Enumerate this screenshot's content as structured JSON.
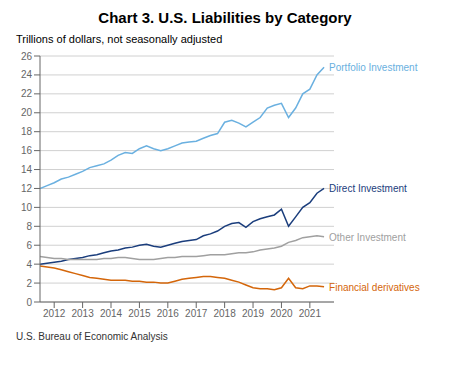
{
  "chart_data": {
    "type": "line",
    "title": "Chart 3. U.S. Liabilities by Category",
    "subtitle": "Trillions of dollars, not seasonally adjusted",
    "annotations": [
      "U.S. Bureau of Economic Analysis"
    ],
    "xlim": [
      2011.5,
      2021.85
    ],
    "xticks": [
      2012,
      2013,
      2014,
      2015,
      2016,
      2017,
      2018,
      2019,
      2020,
      2021
    ],
    "ylim": [
      0,
      26
    ],
    "yticks": [
      0,
      2,
      4,
      6,
      8,
      10,
      12,
      14,
      16,
      18,
      20,
      22,
      24,
      26
    ],
    "grid": true,
    "x": [
      2011.5,
      2011.75,
      2012.0,
      2012.25,
      2012.5,
      2012.75,
      2013.0,
      2013.25,
      2013.5,
      2013.75,
      2014.0,
      2014.25,
      2014.5,
      2014.75,
      2015.0,
      2015.25,
      2015.5,
      2015.75,
      2016.0,
      2016.25,
      2016.5,
      2016.75,
      2017.0,
      2017.25,
      2017.5,
      2017.75,
      2018.0,
      2018.25,
      2018.5,
      2018.75,
      2019.0,
      2019.25,
      2019.5,
      2019.75,
      2020.0,
      2020.25,
      2020.5,
      2020.75,
      2021.0,
      2021.25,
      2021.5
    ],
    "series": [
      {
        "name": "Portfolio Investment",
        "color": "#6ab0e0",
        "values": [
          12.0,
          12.3,
          12.6,
          13.0,
          13.2,
          13.5,
          13.8,
          14.2,
          14.4,
          14.6,
          15.0,
          15.5,
          15.8,
          15.7,
          16.2,
          16.5,
          16.2,
          16.0,
          16.2,
          16.5,
          16.8,
          16.9,
          17.0,
          17.3,
          17.6,
          17.8,
          19.0,
          19.2,
          18.9,
          18.5,
          19.0,
          19.5,
          20.5,
          20.8,
          21.0,
          19.5,
          20.5,
          22.0,
          22.5,
          24.0,
          24.8
        ]
      },
      {
        "name": "Direct Investment",
        "color": "#1a3d7c",
        "values": [
          4.0,
          4.1,
          4.2,
          4.3,
          4.5,
          4.6,
          4.7,
          4.9,
          5.0,
          5.2,
          5.4,
          5.5,
          5.7,
          5.8,
          6.0,
          6.1,
          5.9,
          5.8,
          6.0,
          6.2,
          6.4,
          6.5,
          6.6,
          7.0,
          7.2,
          7.5,
          8.0,
          8.3,
          8.4,
          7.9,
          8.5,
          8.8,
          9.0,
          9.2,
          9.8,
          8.0,
          9.0,
          10.0,
          10.5,
          11.5,
          12.0
        ]
      },
      {
        "name": "Other Investment",
        "color": "#a0a0a0",
        "values": [
          4.8,
          4.7,
          4.6,
          4.6,
          4.5,
          4.5,
          4.5,
          4.5,
          4.5,
          4.6,
          4.6,
          4.7,
          4.7,
          4.6,
          4.5,
          4.5,
          4.5,
          4.6,
          4.7,
          4.7,
          4.8,
          4.8,
          4.8,
          4.9,
          5.0,
          5.0,
          5.0,
          5.1,
          5.2,
          5.2,
          5.3,
          5.5,
          5.6,
          5.7,
          5.9,
          6.3,
          6.5,
          6.8,
          6.9,
          7.0,
          6.9
        ]
      },
      {
        "name": "Financial derivatives",
        "color": "#d4660a",
        "values": [
          3.8,
          3.7,
          3.6,
          3.4,
          3.2,
          3.0,
          2.8,
          2.6,
          2.5,
          2.4,
          2.3,
          2.3,
          2.3,
          2.2,
          2.2,
          2.1,
          2.1,
          2.0,
          2.0,
          2.2,
          2.4,
          2.5,
          2.6,
          2.7,
          2.7,
          2.6,
          2.5,
          2.3,
          2.1,
          1.8,
          1.5,
          1.4,
          1.4,
          1.3,
          1.5,
          2.5,
          1.5,
          1.4,
          1.7,
          1.7,
          1.6
        ]
      }
    ]
  }
}
